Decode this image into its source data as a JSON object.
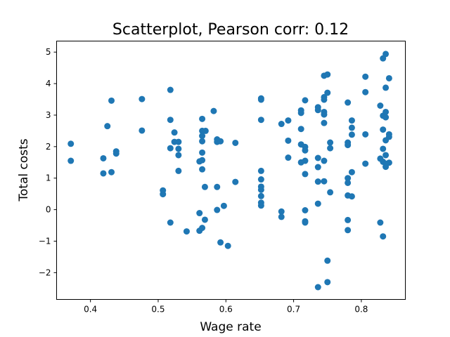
{
  "chart_data": {
    "type": "scatter",
    "title": "Scatterplot, Pearson corr: 0.12",
    "xlabel": "Wage rate",
    "ylabel": "Total costs",
    "xlim": [
      0.35,
      0.865
    ],
    "ylim": [
      -2.85,
      5.35
    ],
    "xticks": [
      0.4,
      0.5,
      0.6,
      0.7,
      0.8
    ],
    "xtick_labels": [
      "0.4",
      "0.5",
      "0.6",
      "0.7",
      "0.8"
    ],
    "yticks": [
      -2,
      -1,
      0,
      1,
      2,
      3,
      4,
      5
    ],
    "ytick_labels": [
      "−2",
      "−1",
      "0",
      "1",
      "2",
      "3",
      "4",
      "5"
    ],
    "grid": false,
    "color": "#1f77b4",
    "points": [
      [
        0.371,
        2.09
      ],
      [
        0.371,
        1.55
      ],
      [
        0.419,
        1.63
      ],
      [
        0.419,
        1.15
      ],
      [
        0.425,
        2.65
      ],
      [
        0.431,
        3.46
      ],
      [
        0.431,
        1.19
      ],
      [
        0.438,
        1.85
      ],
      [
        0.438,
        1.78
      ],
      [
        0.476,
        3.51
      ],
      [
        0.476,
        2.51
      ],
      [
        0.507,
        0.61
      ],
      [
        0.507,
        0.49
      ],
      [
        0.518,
        3.8
      ],
      [
        0.518,
        2.85
      ],
      [
        0.518,
        1.95
      ],
      [
        0.518,
        -0.41
      ],
      [
        0.524,
        2.45
      ],
      [
        0.524,
        2.15
      ],
      [
        0.53,
        2.15
      ],
      [
        0.53,
        1.93
      ],
      [
        0.53,
        1.73
      ],
      [
        0.53,
        1.23
      ],
      [
        0.542,
        -0.69
      ],
      [
        0.561,
        1.53
      ],
      [
        0.561,
        -0.11
      ],
      [
        0.561,
        -0.67
      ],
      [
        0.565,
        2.88
      ],
      [
        0.565,
        2.5
      ],
      [
        0.565,
        2.34
      ],
      [
        0.565,
        2.17
      ],
      [
        0.565,
        1.81
      ],
      [
        0.565,
        1.57
      ],
      [
        0.565,
        1.28
      ],
      [
        0.565,
        -0.58
      ],
      [
        0.569,
        0.72
      ],
      [
        0.569,
        -0.32
      ],
      [
        0.57,
        2.5
      ],
      [
        0.582,
        3.13
      ],
      [
        0.587,
        2.23
      ],
      [
        0.587,
        2.15
      ],
      [
        0.587,
        0.72
      ],
      [
        0.587,
        -0.01
      ],
      [
        0.592,
        2.17
      ],
      [
        0.592,
        -1.04
      ],
      [
        0.597,
        0.12
      ],
      [
        0.603,
        -1.15
      ],
      [
        0.614,
        2.12
      ],
      [
        0.614,
        0.88
      ],
      [
        0.652,
        3.53
      ],
      [
        0.652,
        3.49
      ],
      [
        0.652,
        2.85
      ],
      [
        0.652,
        1.23
      ],
      [
        0.652,
        0.96
      ],
      [
        0.652,
        0.73
      ],
      [
        0.652,
        0.63
      ],
      [
        0.652,
        0.43
      ],
      [
        0.652,
        0.22
      ],
      [
        0.652,
        0.13
      ],
      [
        0.682,
        2.72
      ],
      [
        0.682,
        -0.06
      ],
      [
        0.682,
        -0.23
      ],
      [
        0.692,
        2.83
      ],
      [
        0.692,
        2.19
      ],
      [
        0.692,
        1.65
      ],
      [
        0.711,
        3.15
      ],
      [
        0.711,
        3.07
      ],
      [
        0.711,
        2.56
      ],
      [
        0.711,
        2.07
      ],
      [
        0.711,
        1.5
      ],
      [
        0.717,
        3.47
      ],
      [
        0.717,
        1.99
      ],
      [
        0.717,
        1.88
      ],
      [
        0.717,
        1.55
      ],
      [
        0.717,
        1.13
      ],
      [
        0.717,
        -0.02
      ],
      [
        0.717,
        -0.37
      ],
      [
        0.717,
        -0.41
      ],
      [
        0.736,
        3.25
      ],
      [
        0.736,
        3.16
      ],
      [
        0.736,
        1.64
      ],
      [
        0.736,
        1.35
      ],
      [
        0.736,
        0.89
      ],
      [
        0.736,
        0.19
      ],
      [
        0.736,
        -2.46
      ],
      [
        0.745,
        4.25
      ],
      [
        0.745,
        3.57
      ],
      [
        0.745,
        3.49
      ],
      [
        0.745,
        3.1
      ],
      [
        0.745,
        3.02
      ],
      [
        0.745,
        2.75
      ],
      [
        0.745,
        1.55
      ],
      [
        0.745,
        0.9
      ],
      [
        0.75,
        4.29
      ],
      [
        0.75,
        3.71
      ],
      [
        0.75,
        -1.62
      ],
      [
        0.75,
        -2.3
      ],
      [
        0.754,
        2.13
      ],
      [
        0.754,
        1.95
      ],
      [
        0.754,
        0.55
      ],
      [
        0.78,
        3.4
      ],
      [
        0.78,
        2.13
      ],
      [
        0.78,
        2.05
      ],
      [
        0.78,
        1.0
      ],
      [
        0.78,
        0.85
      ],
      [
        0.78,
        0.45
      ],
      [
        0.78,
        -0.33
      ],
      [
        0.78,
        -0.65
      ],
      [
        0.786,
        2.83
      ],
      [
        0.786,
        2.6
      ],
      [
        0.786,
        2.38
      ],
      [
        0.786,
        1.19
      ],
      [
        0.786,
        0.42
      ],
      [
        0.806,
        4.22
      ],
      [
        0.806,
        3.73
      ],
      [
        0.806,
        2.39
      ],
      [
        0.806,
        1.46
      ],
      [
        0.828,
        3.3
      ],
      [
        0.828,
        1.62
      ],
      [
        0.828,
        -0.41
      ],
      [
        0.832,
        4.8
      ],
      [
        0.832,
        2.98
      ],
      [
        0.832,
        2.54
      ],
      [
        0.832,
        1.93
      ],
      [
        0.832,
        1.52
      ],
      [
        0.832,
        -0.85
      ],
      [
        0.836,
        4.94
      ],
      [
        0.836,
        3.87
      ],
      [
        0.836,
        3.1
      ],
      [
        0.836,
        2.93
      ],
      [
        0.836,
        2.2
      ],
      [
        0.836,
        1.73
      ],
      [
        0.836,
        1.46
      ],
      [
        0.836,
        1.36
      ],
      [
        0.841,
        4.17
      ],
      [
        0.841,
        2.39
      ],
      [
        0.841,
        2.31
      ],
      [
        0.841,
        1.49
      ]
    ]
  }
}
